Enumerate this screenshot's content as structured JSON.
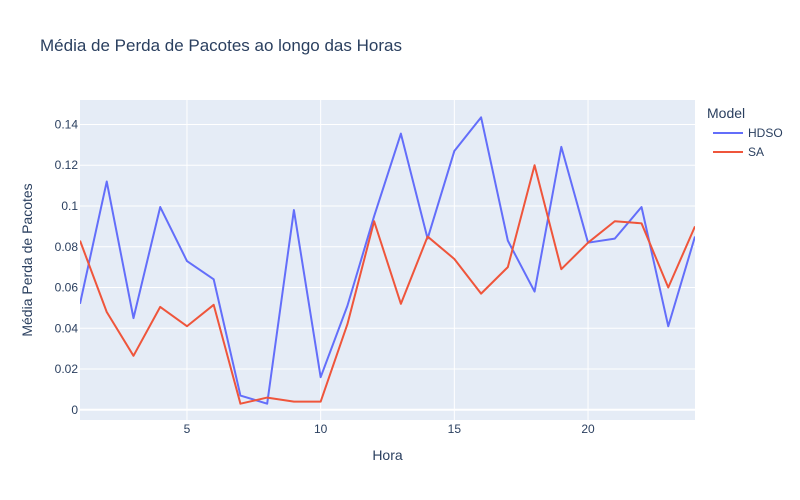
{
  "chart_data": {
    "type": "line",
    "title": "Média de Perda de Pacotes ao longo das Horas",
    "xlabel": "Hora",
    "ylabel": "Média Perda de Pacotes",
    "xlim": [
      1,
      24
    ],
    "ylim": [
      -0.005,
      0.152
    ],
    "x_ticks": [
      5,
      10,
      15,
      20
    ],
    "y_ticks": [
      0,
      0.02,
      0.04,
      0.06,
      0.08,
      0.1,
      0.12,
      0.14
    ],
    "y_tick_labels": [
      "0",
      "0.02",
      "0.04",
      "0.06",
      "0.08",
      "0.1",
      "0.12",
      "0.14"
    ],
    "grid": true,
    "legend": {
      "title": "Model",
      "position": "top-right"
    },
    "x": [
      1,
      2,
      3,
      4,
      5,
      6,
      7,
      8,
      9,
      10,
      11,
      12,
      13,
      14,
      15,
      16,
      17,
      18,
      19,
      20,
      21,
      22,
      23,
      24
    ],
    "series": [
      {
        "name": "HDSO",
        "color": "#636efa",
        "values": [
          0.052,
          0.112,
          0.045,
          0.0995,
          0.073,
          0.064,
          0.007,
          0.003,
          0.098,
          0.016,
          0.051,
          0.095,
          0.1355,
          0.084,
          0.127,
          0.1435,
          0.083,
          0.058,
          0.129,
          0.082,
          0.084,
          0.0995,
          0.041,
          0.085
        ]
      },
      {
        "name": "SA",
        "color": "#EF553B",
        "values": [
          0.083,
          0.048,
          0.0265,
          0.0505,
          0.041,
          0.0515,
          0.003,
          0.006,
          0.004,
          0.004,
          0.042,
          0.0925,
          0.052,
          0.085,
          0.074,
          0.057,
          0.07,
          0.12,
          0.069,
          0.082,
          0.0925,
          0.0915,
          0.06,
          0.09
        ]
      }
    ]
  }
}
